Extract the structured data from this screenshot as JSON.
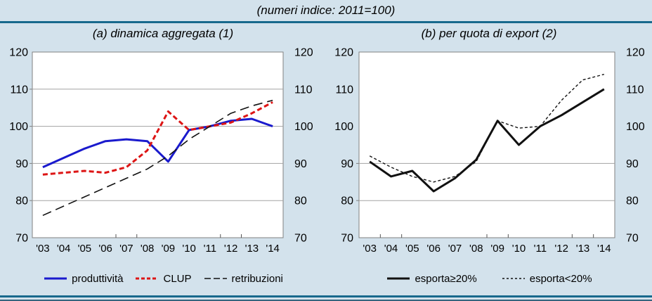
{
  "header": {
    "title": "(numeri indice: 2011=100)"
  },
  "colors": {
    "background": "#d3e2ec",
    "rule": "#17698d",
    "plot_background": "#ffffff",
    "plot_border": "#808080",
    "gridline": "#a3a3a3",
    "produttivita_blue": "#1a1acd",
    "clup_red": "#dd1515",
    "black_series": "#111111"
  },
  "chart_data": [
    {
      "type": "line",
      "title": "(a) dinamica aggregata (1)",
      "categories": [
        "'03",
        "'04",
        "'05",
        "'06",
        "'07",
        "'08",
        "'09",
        "'10",
        "'11",
        "'12",
        "'13",
        "'14"
      ],
      "ylim": [
        70,
        120
      ],
      "yticks": [
        70,
        80,
        90,
        100,
        110,
        120
      ],
      "gridlines": [
        80,
        90,
        100,
        110
      ],
      "tick_boundaries": [
        4,
        5,
        9,
        10
      ],
      "legend_position": "bottom",
      "series": [
        {
          "name": "produttività",
          "color": "#1a1acd",
          "style": "solid",
          "width": 3,
          "values": [
            89,
            91.5,
            94,
            96,
            96.5,
            96,
            90.5,
            99,
            100,
            101.5,
            102,
            100
          ]
        },
        {
          "name": "CLUP",
          "color": "#dd1515",
          "style": "dashed",
          "width": 3,
          "values": [
            87,
            87.5,
            88,
            87.5,
            89,
            93.5,
            104,
            99,
            100,
            101,
            103.5,
            106.5
          ]
        },
        {
          "name": "retribuzioni",
          "color": "#111111",
          "style": "longdash",
          "width": 1.6,
          "values": [
            76,
            78.5,
            81,
            83.5,
            86,
            88.5,
            92,
            96.5,
            100,
            103.5,
            105.5,
            107
          ]
        }
      ]
    },
    {
      "type": "line",
      "title": "(b) per quota di export (2)",
      "categories": [
        "'03",
        "'04",
        "'05",
        "'06",
        "'07",
        "'08",
        "'09",
        "'10",
        "'11",
        "'12",
        "'13",
        "'14"
      ],
      "ylim": [
        70,
        120
      ],
      "yticks": [
        70,
        80,
        90,
        100,
        110,
        120
      ],
      "gridlines": [
        80,
        90
      ],
      "tick_boundaries": [
        1,
        2,
        6,
        7,
        10,
        11
      ],
      "legend_position": "bottom",
      "series": [
        {
          "name": "esporta≥20%",
          "color": "#111111",
          "style": "solid",
          "width": 3,
          "values": [
            90.5,
            86.5,
            88,
            82.5,
            86,
            91,
            101.5,
            95,
            100,
            103,
            106.5,
            110
          ]
        },
        {
          "name": "esporta<20%",
          "color": "#111111",
          "style": "dot",
          "width": 1.4,
          "values": [
            92,
            89,
            86.5,
            85,
            86.5,
            90.5,
            101.5,
            99.5,
            100,
            107,
            112.5,
            114
          ]
        }
      ]
    }
  ]
}
